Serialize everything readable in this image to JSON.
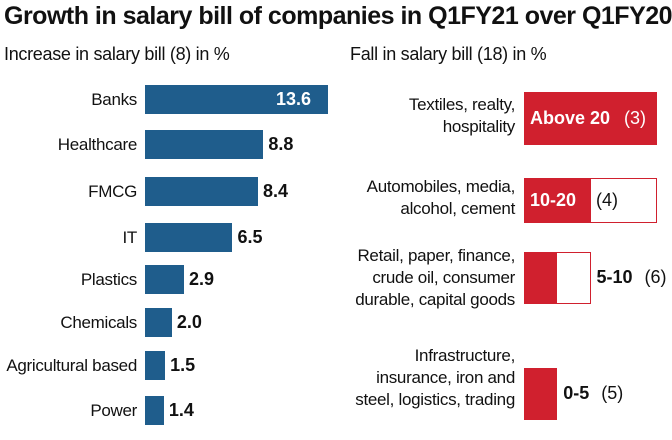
{
  "chart_data": [
    {
      "type": "bar",
      "orientation": "horizontal",
      "title": "Growth in salary bill of companies in Q1FY21 over Q1FY20",
      "subtitle": "Increase in salary bill (8) in %",
      "categories": [
        "Banks",
        "Healthcare",
        "FMCG",
        "IT",
        "Plastics",
        "Chemicals",
        "Agricultural based",
        "Power"
      ],
      "values": [
        13.6,
        8.8,
        8.4,
        6.5,
        2.9,
        2.0,
        1.5,
        1.4
      ],
      "value_labels": [
        "13.6",
        "8.8",
        "8.4",
        "6.5",
        "2.9",
        "2.0",
        "1.5",
        "1.4"
      ],
      "color": "#1f5d8c"
    },
    {
      "type": "bar",
      "orientation": "horizontal",
      "subtitle": "Fall in salary bill (18) in %",
      "color": "#d0202e",
      "groups": [
        {
          "category_lines": [
            "Textiles, realty,",
            "hospitality"
          ],
          "range": "Above 20",
          "count": "(3)",
          "fill": 1.0,
          "box": 1.0
        },
        {
          "category_lines": [
            "Automobiles, media,",
            "alcohol, cement"
          ],
          "range": "10-20",
          "count": "(4)",
          "fill": 0.5,
          "box": 1.0
        },
        {
          "category_lines": [
            "Retail, paper, finance,",
            "crude oil, consumer",
            "durable, capital goods"
          ],
          "range": "5-10",
          "count": "(6)",
          "fill": 0.25,
          "box": 0.5
        },
        {
          "category_lines": [
            "Infrastructure,",
            "insurance, iron and",
            "steel, logistics, trading"
          ],
          "range": "0-5",
          "count": "(5)",
          "fill": 0.25,
          "box": 0
        }
      ]
    }
  ]
}
